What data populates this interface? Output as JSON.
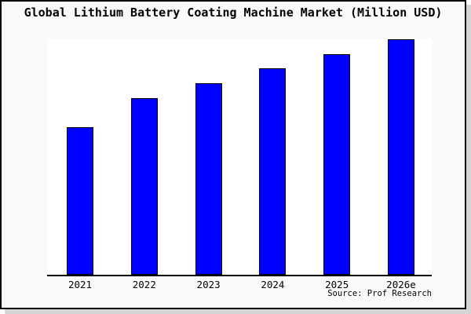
{
  "chart_data": {
    "type": "bar",
    "title": "Global Lithium Battery Coating Machine Market (Million USD)",
    "categories": [
      "2021",
      "2022",
      "2023",
      "2024",
      "2025",
      "2026e"
    ],
    "values": [
      62.7,
      75.0,
      81.3,
      87.7,
      93.7,
      100.0
    ],
    "units": "relative market size index (2026e = 100); y-axis unlabeled in chart",
    "xlabel": "",
    "ylabel": "",
    "ylim": [
      0,
      100
    ],
    "grid": false,
    "legend": false,
    "source": "Source: Prof Research"
  },
  "colors": {
    "bar_fill": "#0000fe",
    "bar_border": "#000000",
    "panel_background": "#fafaf8",
    "plot_background": "#ffffff",
    "axis": "#000000",
    "panel_shadow": "#d6d6d6"
  }
}
